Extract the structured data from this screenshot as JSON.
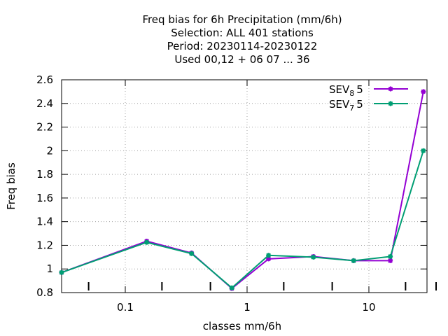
{
  "chart_data": {
    "type": "line",
    "title": [
      "Freq bias  for 6h Precipitation (mm/6h)",
      "Selection: ALL    401 stations",
      "Period: 20230114-20230122",
      "Used  00,12  + 06 07 ... 36"
    ],
    "xlabel": "classes mm/6h",
    "ylabel": "Freq bias",
    "xscale": "log",
    "xlim": [
      0.03,
      30
    ],
    "ylim": [
      0.8,
      2.6
    ],
    "x_ticks": [
      "0.1",
      "1",
      "10"
    ],
    "y_ticks": [
      "0.8",
      "1",
      "1.2",
      "1.4",
      "1.6",
      "1.8",
      "2",
      "2.2",
      "2.4",
      "2.6"
    ],
    "grid": true,
    "legend_position": "top-right",
    "x": [
      0.03,
      0.15,
      0.35,
      0.75,
      1.5,
      3.5,
      7.5,
      15,
      28
    ],
    "series": [
      {
        "name": "SEV",
        "sub": "8",
        "suffix": "5",
        "color": "#9400d3",
        "values": [
          0.97,
          1.235,
          1.135,
          0.835,
          1.085,
          1.105,
          1.07,
          1.07,
          2.5
        ]
      },
      {
        "name": "SEV",
        "sub": "7",
        "suffix": "5",
        "color": "#009e73",
        "values": [
          0.97,
          1.225,
          1.13,
          0.84,
          1.115,
          1.1,
          1.07,
          1.105,
          2.0
        ]
      }
    ]
  }
}
